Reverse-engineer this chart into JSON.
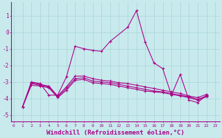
{
  "background_color": "#c8eaed",
  "grid_color": "#a8d4d8",
  "line_color": "#aa0088",
  "xlabel": "Windchill (Refroidissement éolien,°C)",
  "xlabel_fontsize": 6.5,
  "ytick_labels": [
    "1",
    "0",
    "-1",
    "-2",
    "-3",
    "-4",
    "-5"
  ],
  "ytick_vals": [
    1,
    0,
    -1,
    -2,
    -3,
    -4,
    -5
  ],
  "xtick_vals": [
    0,
    1,
    2,
    3,
    4,
    5,
    6,
    7,
    8,
    9,
    10,
    11,
    12,
    13,
    14,
    15,
    16,
    17,
    18,
    19,
    20,
    21,
    22,
    23
  ],
  "xlim": [
    -0.3,
    23.5
  ],
  "ylim": [
    -5.4,
    1.8
  ],
  "series": [
    [
      [
        1,
        -4.5
      ],
      [
        2,
        -3.0
      ],
      [
        3,
        -3.1
      ],
      [
        4,
        -3.8
      ],
      [
        5,
        -3.8
      ],
      [
        6,
        -2.7
      ],
      [
        7,
        -0.85
      ],
      [
        8,
        -1.0
      ],
      [
        9,
        -1.1
      ],
      [
        10,
        -1.15
      ],
      [
        11,
        -0.55
      ],
      [
        13,
        0.3
      ],
      [
        14,
        1.3
      ],
      [
        15,
        -0.6
      ],
      [
        16,
        -1.85
      ],
      [
        17,
        -2.2
      ],
      [
        18,
        -3.8
      ],
      [
        19,
        -2.55
      ],
      [
        20,
        -4.1
      ],
      [
        21,
        -4.25
      ],
      [
        22,
        -3.8
      ]
    ],
    [
      [
        1,
        -4.5
      ],
      [
        2,
        -3.05
      ],
      [
        3,
        -3.15
      ],
      [
        4,
        -3.25
      ],
      [
        5,
        -3.85
      ],
      [
        6,
        -3.3
      ],
      [
        7,
        -2.65
      ],
      [
        8,
        -2.65
      ],
      [
        9,
        -2.8
      ],
      [
        10,
        -2.9
      ],
      [
        11,
        -2.95
      ],
      [
        12,
        -3.05
      ],
      [
        13,
        -3.1
      ],
      [
        14,
        -3.2
      ],
      [
        15,
        -3.3
      ],
      [
        16,
        -3.4
      ],
      [
        17,
        -3.5
      ],
      [
        18,
        -3.6
      ],
      [
        19,
        -3.7
      ],
      [
        20,
        -3.85
      ],
      [
        21,
        -3.95
      ],
      [
        22,
        -3.75
      ]
    ],
    [
      [
        1,
        -4.5
      ],
      [
        2,
        -3.1
      ],
      [
        3,
        -3.2
      ],
      [
        4,
        -3.3
      ],
      [
        5,
        -3.9
      ],
      [
        6,
        -3.4
      ],
      [
        7,
        -2.8
      ],
      [
        8,
        -2.75
      ],
      [
        9,
        -2.95
      ],
      [
        10,
        -3.0
      ],
      [
        11,
        -3.05
      ],
      [
        12,
        -3.15
      ],
      [
        13,
        -3.25
      ],
      [
        14,
        -3.35
      ],
      [
        15,
        -3.45
      ],
      [
        16,
        -3.55
      ],
      [
        17,
        -3.6
      ],
      [
        18,
        -3.7
      ],
      [
        19,
        -3.8
      ],
      [
        20,
        -3.9
      ],
      [
        21,
        -4.05
      ],
      [
        22,
        -3.85
      ]
    ],
    [
      [
        1,
        -4.5
      ],
      [
        2,
        -3.2
      ],
      [
        3,
        -3.25
      ],
      [
        4,
        -3.35
      ],
      [
        5,
        -3.95
      ],
      [
        6,
        -3.5
      ],
      [
        7,
        -2.9
      ],
      [
        8,
        -2.85
      ],
      [
        9,
        -3.05
      ],
      [
        10,
        -3.1
      ],
      [
        11,
        -3.15
      ],
      [
        12,
        -3.25
      ],
      [
        13,
        -3.35
      ],
      [
        14,
        -3.45
      ],
      [
        15,
        -3.55
      ],
      [
        16,
        -3.6
      ],
      [
        17,
        -3.65
      ],
      [
        18,
        -3.75
      ],
      [
        19,
        -3.85
      ],
      [
        20,
        -3.95
      ],
      [
        21,
        -4.1
      ],
      [
        22,
        -3.9
      ]
    ]
  ]
}
